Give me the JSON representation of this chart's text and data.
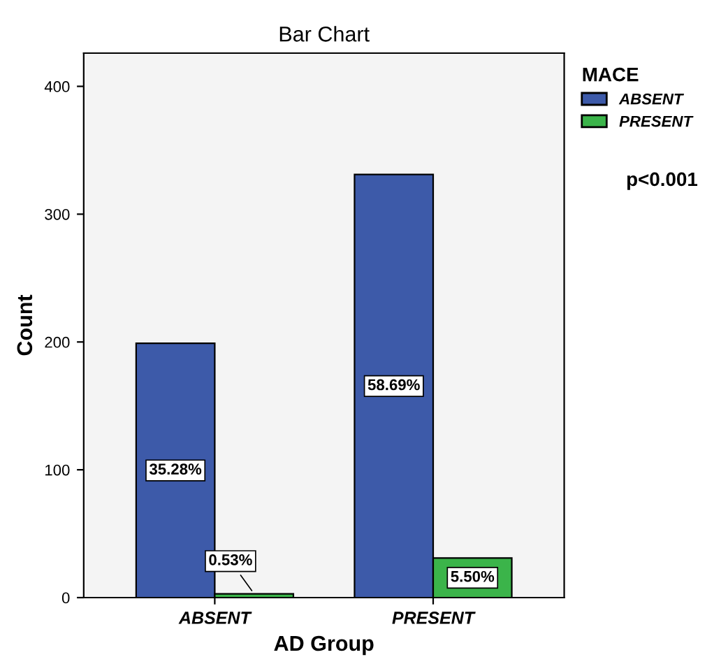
{
  "chart_data": {
    "type": "bar",
    "title": "Bar Chart",
    "xlabel": "AD Group",
    "ylabel": "Count",
    "categories": [
      "ABSENT",
      "PRESENT"
    ],
    "series": [
      {
        "name": "ABSENT",
        "color": "#3d5aa9",
        "values": [
          199,
          331
        ]
      },
      {
        "name": "PRESENT",
        "color": "#3bb44a",
        "values": [
          3,
          31
        ]
      }
    ],
    "legend_title": "MACE",
    "legend": "top right",
    "ylim": [
      0,
      426
    ],
    "yticks": [
      0,
      100,
      200,
      300,
      400
    ],
    "grid": false,
    "annotations": [
      "p<0.001",
      "35.28%",
      "58.69%",
      "0.53%",
      "5.50%"
    ]
  }
}
